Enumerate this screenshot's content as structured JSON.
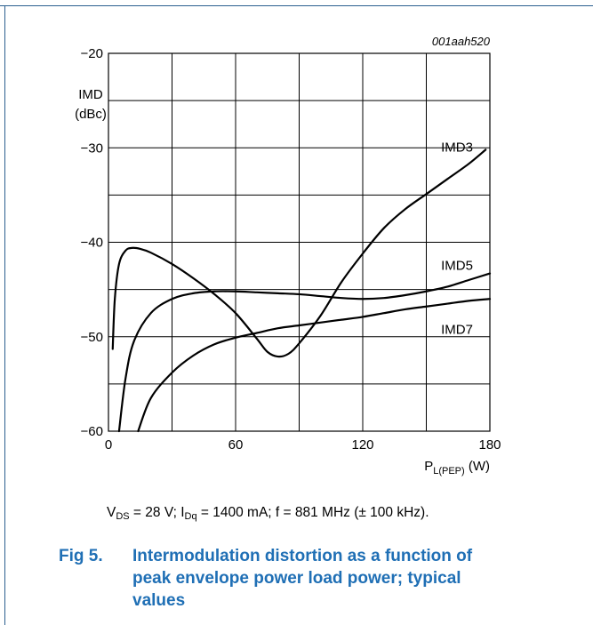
{
  "chart_data": {
    "type": "line",
    "id_label": "001aah520",
    "ylabel_line1": "IMD",
    "ylabel_line2": "(dBc)",
    "xlabel_main": "P",
    "xlabel_sub": "L(PEP)",
    "xlabel_unit": "(W)",
    "xlim": [
      0,
      180
    ],
    "ylim": [
      -60,
      -20
    ],
    "xticks": [
      0,
      60,
      120,
      180
    ],
    "yticks": [
      -20,
      -30,
      -40,
      -50,
      -60
    ],
    "x_grid_step": 30,
    "y_grid_step": 5,
    "grid": true,
    "series": [
      {
        "name": "IMD3",
        "x": [
          2,
          3,
          5,
          8,
          11,
          15,
          20,
          30,
          40,
          50,
          60,
          70,
          75,
          80,
          85,
          90,
          100,
          110,
          120,
          130,
          140,
          150,
          160,
          170,
          178
        ],
        "y": [
          -51.3,
          -46,
          -42.3,
          -40.9,
          -40.6,
          -40.7,
          -41.1,
          -42.3,
          -43.8,
          -45.5,
          -47.5,
          -50.2,
          -51.6,
          -52.1,
          -51.8,
          -50.7,
          -47.8,
          -44.2,
          -41.2,
          -38.5,
          -36.5,
          -34.9,
          -33.3,
          -31.7,
          -30.2
        ]
      },
      {
        "name": "IMD5",
        "x": [
          5,
          8,
          12,
          20,
          30,
          40,
          50,
          60,
          70,
          80,
          90,
          100,
          110,
          120,
          130,
          140,
          150,
          160,
          170,
          180
        ],
        "y": [
          -60,
          -54.5,
          -50.5,
          -47.5,
          -46,
          -45.4,
          -45.2,
          -45.2,
          -45.3,
          -45.4,
          -45.5,
          -45.7,
          -45.9,
          -46,
          -45.9,
          -45.6,
          -45.2,
          -44.7,
          -44,
          -43.3
        ]
      },
      {
        "name": "IMD7",
        "x": [
          14,
          20,
          30,
          40,
          50,
          60,
          70,
          80,
          90,
          100,
          110,
          120,
          130,
          140,
          150,
          160,
          170,
          180
        ],
        "y": [
          -60,
          -56.5,
          -53.8,
          -52,
          -50.8,
          -50.1,
          -49.6,
          -49.1,
          -48.8,
          -48.5,
          -48.2,
          -47.9,
          -47.5,
          -47.1,
          -46.8,
          -46.5,
          -46.2,
          -46
        ]
      }
    ]
  },
  "conditions": {
    "vds": "V",
    "vds_sub": "DS",
    "vds_rest": " = 28 V; I",
    "idq_sub": "Dq",
    "rest": " = 1400 mA; f = 881 MHz (± 100 kHz)."
  },
  "caption": {
    "number": "Fig 5.",
    "text": "Intermodulation distortion as a function of peak envelope power load power; typical values"
  }
}
